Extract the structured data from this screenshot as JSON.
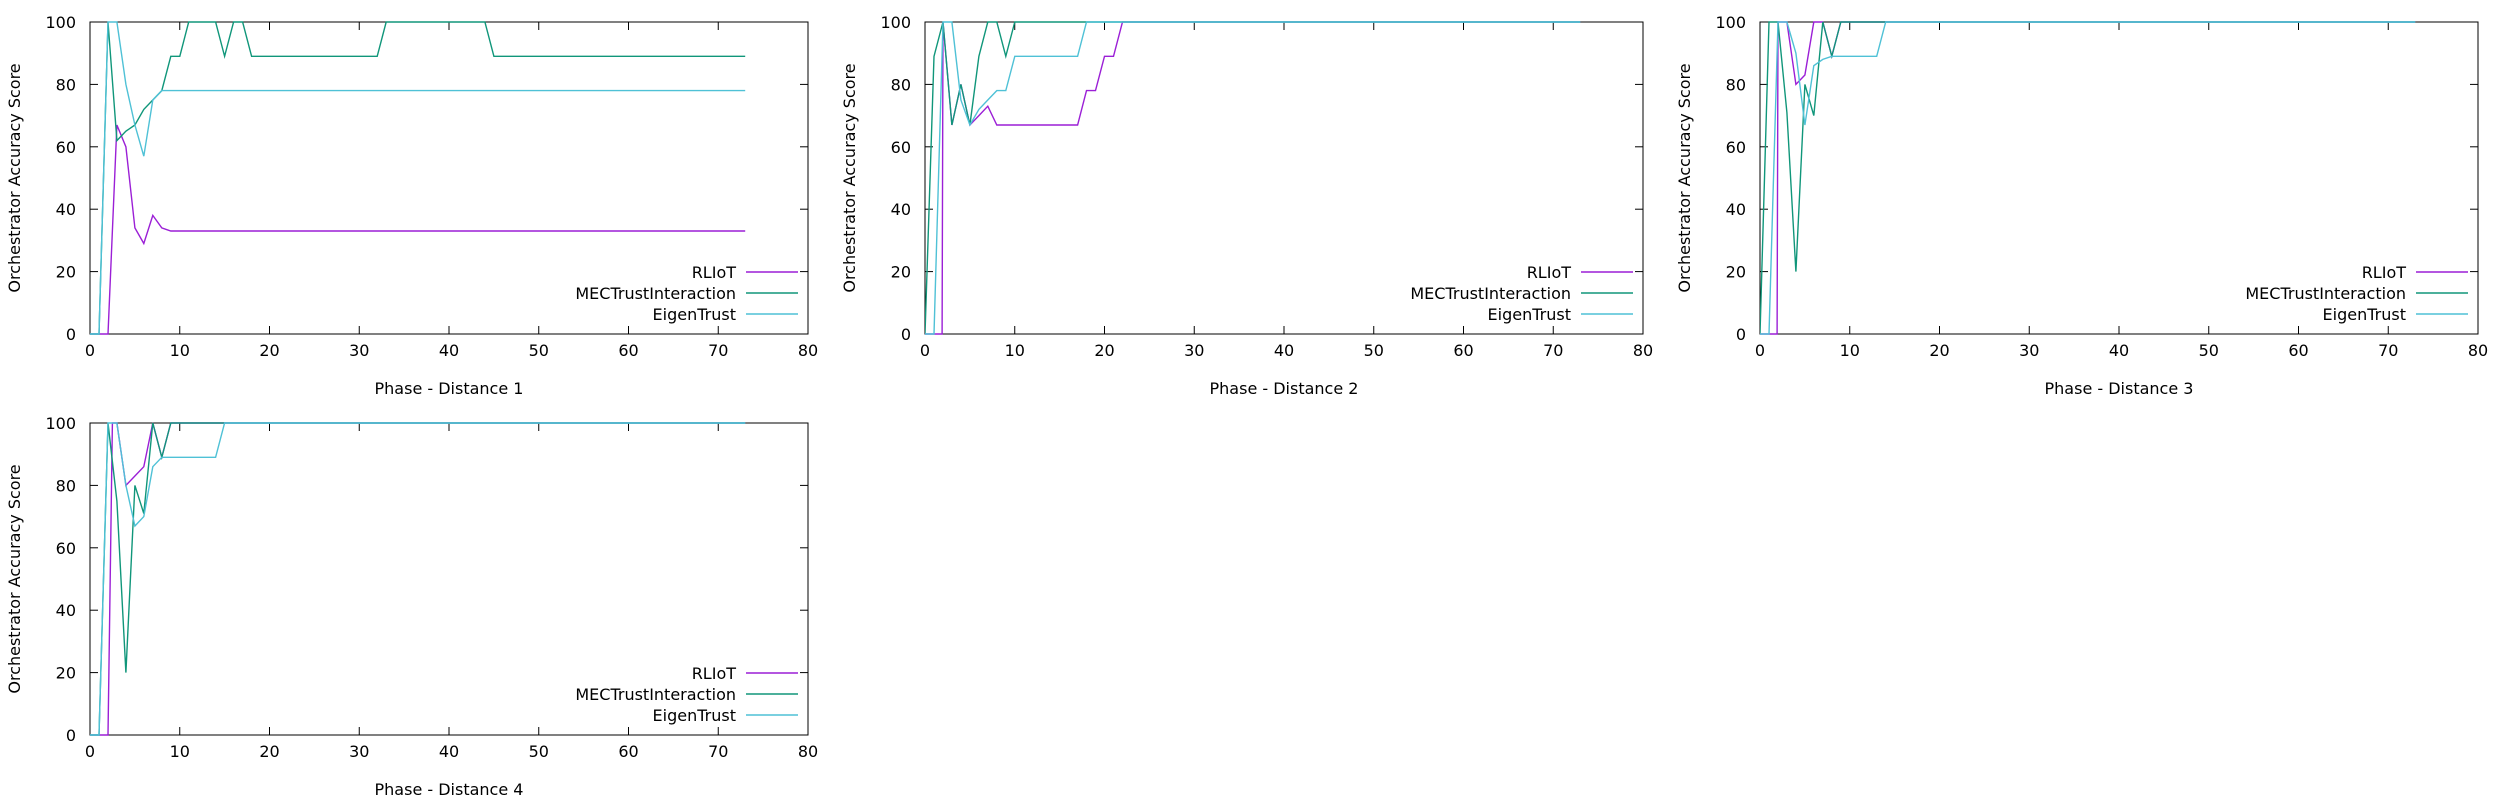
{
  "ylabel": "Orchestrator Accuracy Score",
  "colors": {
    "RLIoT": "#9b1fd6",
    "MECTrustInteraction": "#10967a",
    "EigenTrust": "#4fc1d6"
  },
  "chart_data": [
    {
      "type": "line",
      "xlabel": "Phase - Distance 1",
      "ylabel": "Orchestrator Accuracy Score",
      "xlim": [
        0,
        80
      ],
      "ylim": [
        0,
        100
      ],
      "xticks": [
        0,
        10,
        20,
        30,
        40,
        50,
        60,
        70,
        80
      ],
      "yticks": [
        0,
        20,
        40,
        60,
        80,
        100
      ],
      "legend": "bottom-right",
      "series": [
        {
          "name": "RLIoT",
          "x": [
            0,
            1,
            2,
            3,
            4,
            5,
            6,
            7,
            8,
            9,
            73
          ],
          "y": [
            0,
            0,
            0,
            67,
            60,
            34,
            29,
            38,
            34,
            33,
            33
          ]
        },
        {
          "name": "MECTrustInteraction",
          "x": [
            0,
            1,
            2,
            3,
            4,
            5,
            6,
            7,
            8,
            9,
            10,
            11,
            12,
            14,
            15,
            16,
            17,
            18,
            19,
            32,
            33,
            38,
            44,
            45,
            73
          ],
          "y": [
            0,
            0,
            100,
            62,
            65,
            67,
            72,
            75,
            78,
            89,
            89,
            100,
            100,
            100,
            89,
            100,
            100,
            89,
            89,
            89,
            100,
            100,
            100,
            89,
            89
          ]
        },
        {
          "name": "EigenTrust",
          "x": [
            0,
            1,
            2,
            3,
            4,
            5,
            6,
            7,
            8,
            73
          ],
          "y": [
            0,
            0,
            100,
            100,
            80,
            67,
            57,
            75,
            78,
            78
          ]
        }
      ]
    },
    {
      "type": "line",
      "xlabel": "Phase - Distance 2",
      "ylabel": "Orchestrator Accuracy Score",
      "xlim": [
        0,
        80
      ],
      "ylim": [
        0,
        100
      ],
      "xticks": [
        0,
        10,
        20,
        30,
        40,
        50,
        60,
        70,
        80
      ],
      "yticks": [
        0,
        20,
        40,
        60,
        80,
        100
      ],
      "legend": "bottom-right",
      "series": [
        {
          "name": "RLIoT",
          "x": [
            0,
            1,
            1.9,
            2,
            3,
            4,
            5,
            6,
            7,
            8,
            17,
            18,
            19,
            20,
            21,
            22,
            73
          ],
          "y": [
            0,
            0,
            0,
            100,
            67,
            80,
            67,
            70,
            73,
            67,
            67,
            78,
            78,
            89,
            89,
            100,
            100
          ]
        },
        {
          "name": "MECTrustInteraction",
          "x": [
            0,
            1,
            2,
            3,
            4,
            5,
            6,
            7,
            8,
            9,
            10,
            73
          ],
          "y": [
            0,
            89,
            100,
            67,
            80,
            67,
            89,
            100,
            100,
            89,
            100,
            100
          ]
        },
        {
          "name": "EigenTrust",
          "x": [
            0,
            1,
            2,
            3,
            4,
            5,
            6,
            7,
            8,
            9,
            10,
            16,
            17,
            18,
            73
          ],
          "y": [
            0,
            0,
            100,
            100,
            75,
            67,
            72,
            75,
            78,
            78,
            89,
            89,
            89,
            100,
            100
          ]
        }
      ]
    },
    {
      "type": "line",
      "xlabel": "Phase - Distance 3",
      "ylabel": "Orchestrator Accuracy Score",
      "xlim": [
        0,
        80
      ],
      "ylim": [
        0,
        100
      ],
      "xticks": [
        0,
        10,
        20,
        30,
        40,
        50,
        60,
        70,
        80
      ],
      "yticks": [
        0,
        20,
        40,
        60,
        80,
        100
      ],
      "legend": "bottom-right",
      "series": [
        {
          "name": "RLIoT",
          "x": [
            0,
            1,
            1.9,
            2,
            3,
            4,
            5,
            6,
            7,
            8,
            9,
            73
          ],
          "y": [
            0,
            0,
            0,
            100,
            100,
            80,
            83,
            100,
            100,
            89,
            100,
            100
          ]
        },
        {
          "name": "MECTrustInteraction",
          "x": [
            0,
            1,
            2,
            3,
            4,
            5,
            6,
            7,
            8,
            9,
            73
          ],
          "y": [
            0,
            100,
            100,
            71,
            20,
            80,
            70,
            100,
            89,
            100,
            100
          ]
        },
        {
          "name": "EigenTrust",
          "x": [
            0,
            1,
            2,
            3,
            4,
            5,
            6,
            7,
            8,
            13,
            14,
            73
          ],
          "y": [
            0,
            0,
            100,
            100,
            90,
            67,
            86,
            88,
            89,
            89,
            100,
            100
          ]
        }
      ]
    },
    {
      "type": "line",
      "xlabel": "Phase - Distance 4",
      "ylabel": "Orchestrator Accuracy Score",
      "xlim": [
        0,
        80
      ],
      "ylim": [
        0,
        100
      ],
      "xticks": [
        0,
        10,
        20,
        30,
        40,
        50,
        60,
        70,
        80
      ],
      "yticks": [
        0,
        20,
        40,
        60,
        80,
        100
      ],
      "legend": "bottom-right",
      "series": [
        {
          "name": "RLIoT",
          "x": [
            0,
            1,
            2,
            2.5,
            3,
            4,
            5,
            6,
            7,
            8,
            9,
            73
          ],
          "y": [
            0,
            0,
            0,
            100,
            100,
            80,
            83,
            86,
            100,
            89,
            100,
            100
          ]
        },
        {
          "name": "MECTrustInteraction",
          "x": [
            0,
            1,
            2,
            3,
            4,
            5,
            6,
            7,
            8,
            9,
            10,
            73
          ],
          "y": [
            0,
            0,
            100,
            75,
            20,
            80,
            71,
            100,
            89,
            100,
            100,
            100
          ]
        },
        {
          "name": "EigenTrust",
          "x": [
            0,
            1,
            2,
            3,
            4,
            5,
            6,
            7,
            8,
            14,
            15,
            73
          ],
          "y": [
            0,
            0,
            100,
            100,
            80,
            67,
            70,
            86,
            89,
            89,
            100,
            100
          ]
        }
      ]
    }
  ]
}
